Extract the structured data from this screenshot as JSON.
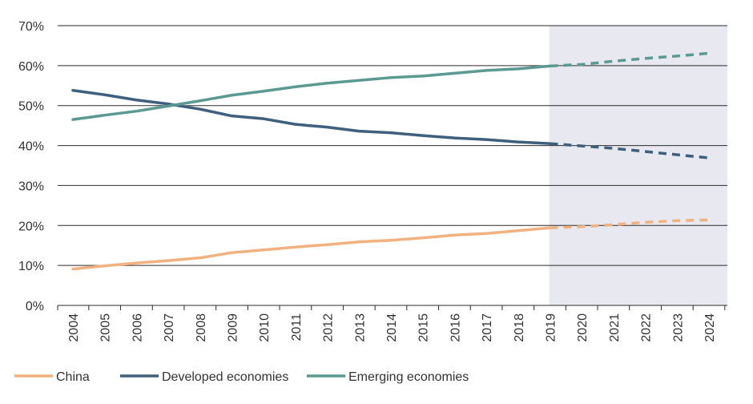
{
  "chart_data": {
    "type": "line",
    "title": "",
    "xlabel": "",
    "ylabel": "",
    "categories": [
      "2004",
      "2005",
      "2006",
      "2007",
      "2008",
      "2009",
      "2010",
      "2011",
      "2012",
      "2013",
      "2014",
      "2015",
      "2016",
      "2017",
      "2018",
      "2019",
      "2020",
      "2021",
      "2022",
      "2023",
      "2024"
    ],
    "ylim": [
      0,
      70
    ],
    "yticks": [
      "0%",
      "10%",
      "20%",
      "30%",
      "40%",
      "50%",
      "60%",
      "70%"
    ],
    "ytick_values": [
      0,
      10,
      20,
      30,
      40,
      50,
      60,
      70
    ],
    "grid": "horizontal",
    "legend_position": "bottom-left",
    "forecast_start": "2019",
    "forecast_shaded": true,
    "shade_color": "#e8e9f0",
    "series": [
      {
        "name": "China",
        "color": "#f2b27f",
        "values": [
          9.1,
          9.9,
          10.6,
          11.2,
          11.9,
          13.2,
          13.9,
          14.6,
          15.2,
          15.9,
          16.3,
          16.9,
          17.6,
          18.0,
          18.7,
          19.4,
          19.7,
          20.2,
          20.8,
          21.2,
          21.4
        ]
      },
      {
        "name": "Developed economies",
        "color": "#3e5f7e",
        "values": [
          53.8,
          52.7,
          51.4,
          50.4,
          49.1,
          47.4,
          46.7,
          45.3,
          44.6,
          43.6,
          43.2,
          42.5,
          41.9,
          41.5,
          40.9,
          40.5,
          39.9,
          39.3,
          38.5,
          37.7,
          36.9
        ]
      },
      {
        "name": "Emerging economies",
        "color": "#5a9a92",
        "values": [
          46.5,
          47.6,
          48.6,
          49.9,
          51.2,
          52.6,
          53.6,
          54.7,
          55.6,
          56.3,
          57.0,
          57.4,
          58.1,
          58.8,
          59.2,
          59.9,
          60.3,
          61.1,
          61.8,
          62.4,
          63.1
        ]
      }
    ]
  }
}
